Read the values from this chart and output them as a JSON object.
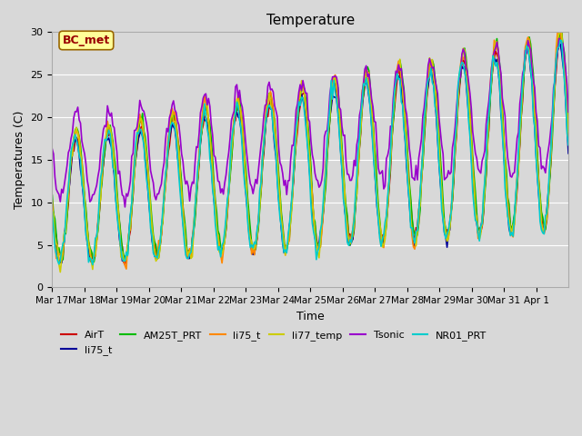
{
  "title": "Temperature",
  "xlabel": "Time",
  "ylabel": "Temperatures (C)",
  "ylim": [
    0,
    30
  ],
  "n_days": 16,
  "xtick_labels": [
    "Mar 17",
    "Mar 18",
    "Mar 19",
    "Mar 20",
    "Mar 21",
    "Mar 22",
    "Mar 23",
    "Mar 24",
    "Mar 25",
    "Mar 26",
    "Mar 27",
    "Mar 28",
    "Mar 29",
    "Mar 30",
    "Mar 31",
    "Apr 1"
  ],
  "yticks": [
    0,
    5,
    10,
    15,
    20,
    25,
    30
  ],
  "fig_bg_color": "#d8d8d8",
  "ax_bg_color": "#d8d8d8",
  "grid_color": "#ffffff",
  "series": {
    "AirT": {
      "color": "#cc0000",
      "lw": 1.2
    },
    "li75_t": {
      "color": "#000099",
      "lw": 1.2
    },
    "AM25T_PRT": {
      "color": "#00bb00",
      "lw": 1.2
    },
    "li75_t2": {
      "color": "#ff8800",
      "lw": 1.2
    },
    "li77_temp": {
      "color": "#cccc00",
      "lw": 1.2
    },
    "Tsonic": {
      "color": "#9900cc",
      "lw": 1.2
    },
    "NR01_PRT": {
      "color": "#00cccc",
      "lw": 1.2
    }
  },
  "legend_labels": [
    "AirT",
    "li75_t",
    "AM25T_PRT",
    "li75_t",
    "li77_temp",
    "Tsonic",
    "NR01_PRT"
  ],
  "annotation_text": "BC_met",
  "annotation_bg": "#ffff99",
  "annotation_border": "#996600",
  "annotation_color": "#990000"
}
